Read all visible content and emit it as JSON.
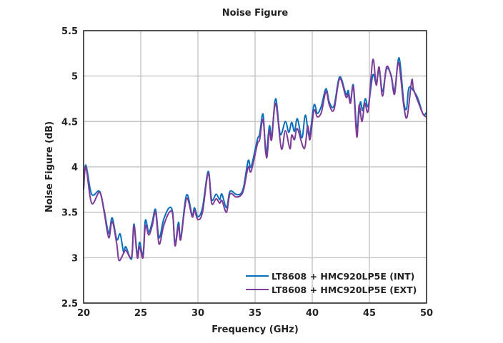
{
  "chart_data": {
    "type": "line",
    "title": "Noise Figure",
    "xlabel": "Frequency (GHz)",
    "ylabel": "Noise Figure (dB)",
    "xlim": [
      20,
      50
    ],
    "ylim": [
      2.5,
      5.5
    ],
    "xticks": [
      "20",
      "25",
      "30",
      "35",
      "40",
      "45",
      "50"
    ],
    "yticks": [
      "2.5",
      "3",
      "3.5",
      "4",
      "4.5",
      "5",
      "5.5"
    ],
    "grid": true,
    "legend_position": "bottom-right",
    "series": [
      {
        "name": "LT8608 + HMC920LP5E (INT)",
        "color": "#0a6fba",
        "x": [
          20.0,
          20.2,
          20.7,
          21.4,
          21.8,
          22.2,
          22.5,
          22.9,
          23.2,
          23.5,
          23.7,
          24.2,
          24.4,
          24.7,
          24.9,
          25.2,
          25.4,
          25.7,
          26.0,
          26.3,
          26.6,
          27.0,
          27.5,
          27.8,
          28.0,
          28.3,
          28.5,
          29.0,
          29.5,
          29.7,
          30.0,
          30.4,
          30.9,
          31.2,
          31.6,
          31.9,
          32.1,
          32.5,
          32.8,
          33.3,
          33.7,
          34.0,
          34.4,
          34.65,
          35.2,
          35.4,
          35.7,
          35.95,
          36.25,
          36.45,
          36.8,
          37.2,
          37.65,
          37.95,
          38.2,
          38.45,
          38.7,
          39.1,
          39.4,
          39.75,
          40.15,
          40.45,
          40.8,
          41.2,
          41.5,
          41.9,
          42.4,
          42.95,
          43.15,
          43.35,
          43.6,
          43.9,
          44.2,
          44.4,
          44.65,
          44.9,
          45.3,
          45.6,
          45.85,
          46.15,
          46.5,
          46.9,
          47.2,
          47.6,
          48.0,
          48.25,
          48.45,
          48.85,
          49.25,
          49.7,
          50.0
        ],
        "y": [
          3.78,
          4.02,
          3.7,
          3.73,
          3.52,
          3.27,
          3.44,
          3.2,
          3.26,
          3.06,
          3.12,
          2.99,
          3.37,
          3.03,
          3.17,
          3.03,
          3.41,
          3.28,
          3.39,
          3.53,
          3.22,
          3.42,
          3.55,
          3.49,
          3.15,
          3.39,
          3.22,
          3.69,
          3.47,
          3.55,
          3.45,
          3.55,
          3.95,
          3.64,
          3.7,
          3.64,
          3.7,
          3.55,
          3.73,
          3.7,
          3.7,
          3.78,
          4.07,
          4.0,
          4.3,
          4.36,
          4.58,
          4.14,
          4.45,
          4.33,
          4.75,
          4.36,
          4.5,
          4.38,
          4.49,
          4.39,
          4.53,
          4.32,
          4.57,
          4.34,
          4.68,
          4.59,
          4.67,
          4.86,
          4.71,
          4.67,
          4.99,
          4.8,
          4.84,
          4.72,
          4.9,
          4.43,
          4.71,
          4.62,
          4.75,
          4.67,
          5.01,
          4.92,
          5.07,
          4.83,
          5.08,
          5.01,
          4.84,
          5.2,
          4.72,
          4.64,
          4.87,
          4.84,
          4.75,
          4.58,
          4.6
        ]
      },
      {
        "name": "LT8608 + HMC920LP5E (EXT)",
        "color": "#7d3c98",
        "x": [
          20.0,
          20.2,
          20.7,
          21.4,
          21.8,
          22.2,
          22.5,
          22.9,
          23.1,
          23.5,
          23.7,
          24.2,
          24.4,
          24.7,
          24.9,
          25.2,
          25.4,
          25.7,
          26.0,
          26.3,
          26.6,
          27.0,
          27.5,
          27.8,
          28.0,
          28.3,
          28.5,
          29.0,
          29.5,
          29.7,
          30.0,
          30.4,
          30.9,
          31.2,
          31.6,
          31.9,
          32.1,
          32.5,
          32.8,
          33.3,
          33.7,
          34.0,
          34.4,
          34.65,
          35.2,
          35.4,
          35.7,
          36.0,
          36.25,
          36.45,
          36.8,
          37.3,
          37.65,
          38.05,
          38.2,
          38.45,
          38.7,
          39.3,
          39.6,
          39.8,
          40.15,
          40.45,
          40.8,
          41.2,
          41.5,
          41.9,
          42.4,
          42.95,
          43.15,
          43.35,
          43.6,
          43.9,
          44.1,
          44.35,
          44.6,
          44.9,
          45.3,
          45.6,
          45.85,
          46.15,
          46.5,
          46.9,
          47.2,
          47.55,
          48.0,
          48.3,
          48.7,
          48.85,
          49.25,
          49.7,
          50.0
        ],
        "y": [
          3.75,
          4.0,
          3.6,
          3.72,
          3.5,
          3.22,
          3.4,
          3.15,
          2.97,
          3.05,
          3.08,
          3.01,
          3.35,
          3.0,
          3.12,
          3.0,
          3.35,
          3.25,
          3.35,
          3.5,
          3.15,
          3.35,
          3.5,
          3.47,
          3.13,
          3.35,
          3.2,
          3.65,
          3.45,
          3.52,
          3.42,
          3.5,
          3.93,
          3.6,
          3.65,
          3.6,
          3.63,
          3.5,
          3.7,
          3.67,
          3.68,
          3.75,
          4.0,
          3.95,
          4.25,
          4.3,
          4.52,
          4.1,
          4.4,
          4.3,
          4.7,
          4.2,
          4.4,
          4.2,
          4.35,
          4.3,
          4.42,
          4.2,
          4.45,
          4.3,
          4.62,
          4.55,
          4.6,
          4.83,
          4.68,
          4.63,
          4.97,
          4.77,
          4.8,
          4.7,
          4.88,
          4.33,
          4.68,
          4.5,
          4.7,
          4.62,
          5.18,
          4.9,
          5.1,
          4.78,
          5.1,
          5.0,
          4.8,
          5.15,
          4.68,
          4.55,
          4.95,
          4.86,
          4.72,
          4.58,
          4.55
        ]
      }
    ]
  }
}
